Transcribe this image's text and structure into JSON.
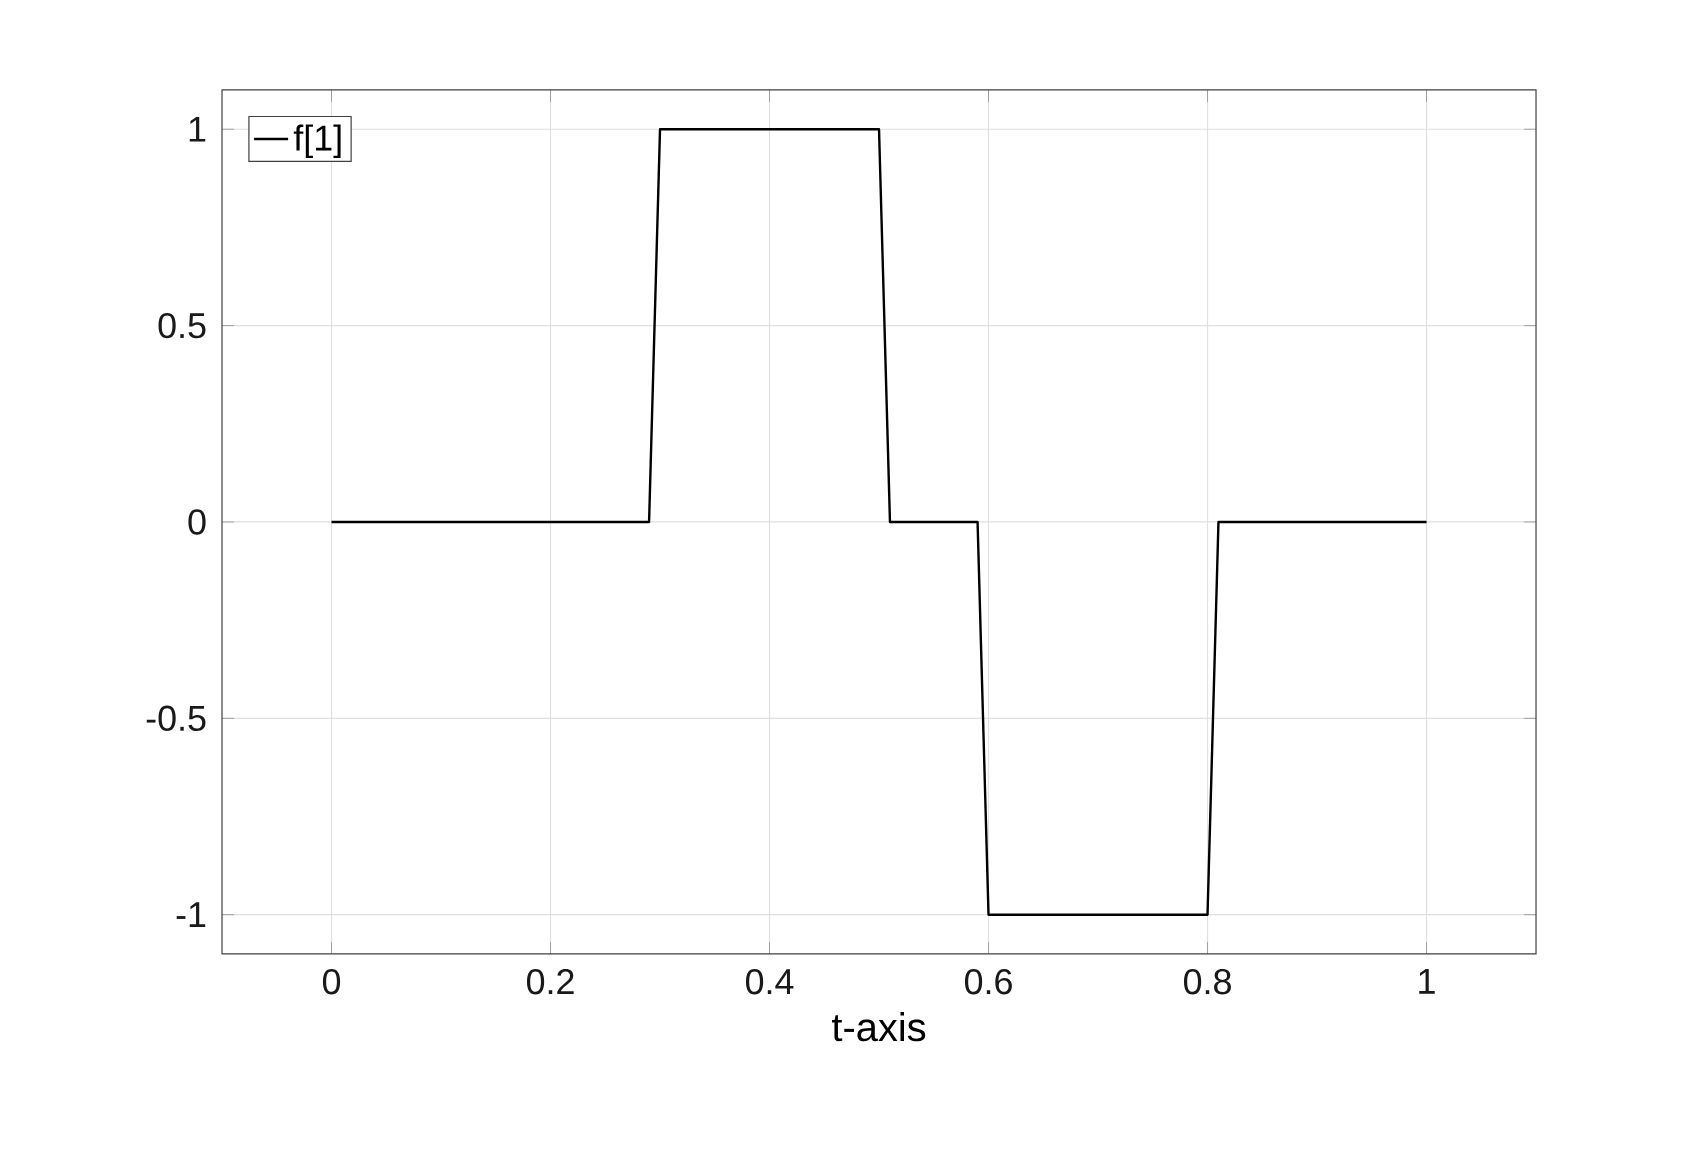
{
  "chart_data": {
    "type": "line",
    "xlabel": "t-axis",
    "x": [
      0,
      0.29,
      0.3,
      0.5,
      0.51,
      0.59,
      0.6,
      0.8,
      0.81,
      1
    ],
    "series": [
      {
        "name": "f[1]",
        "color": "#000000",
        "values": [
          0,
          0,
          1,
          1,
          0,
          0,
          -1,
          -1,
          0,
          0
        ]
      }
    ],
    "xlim": [
      -0.1,
      1.1
    ],
    "ylim": [
      -1.1,
      1.1
    ],
    "xticks": [
      0,
      0.2,
      0.4,
      0.6,
      0.8,
      1
    ],
    "yticks": [
      -1,
      -0.5,
      0,
      0.5,
      1
    ],
    "grid": true,
    "legend": "top left"
  }
}
